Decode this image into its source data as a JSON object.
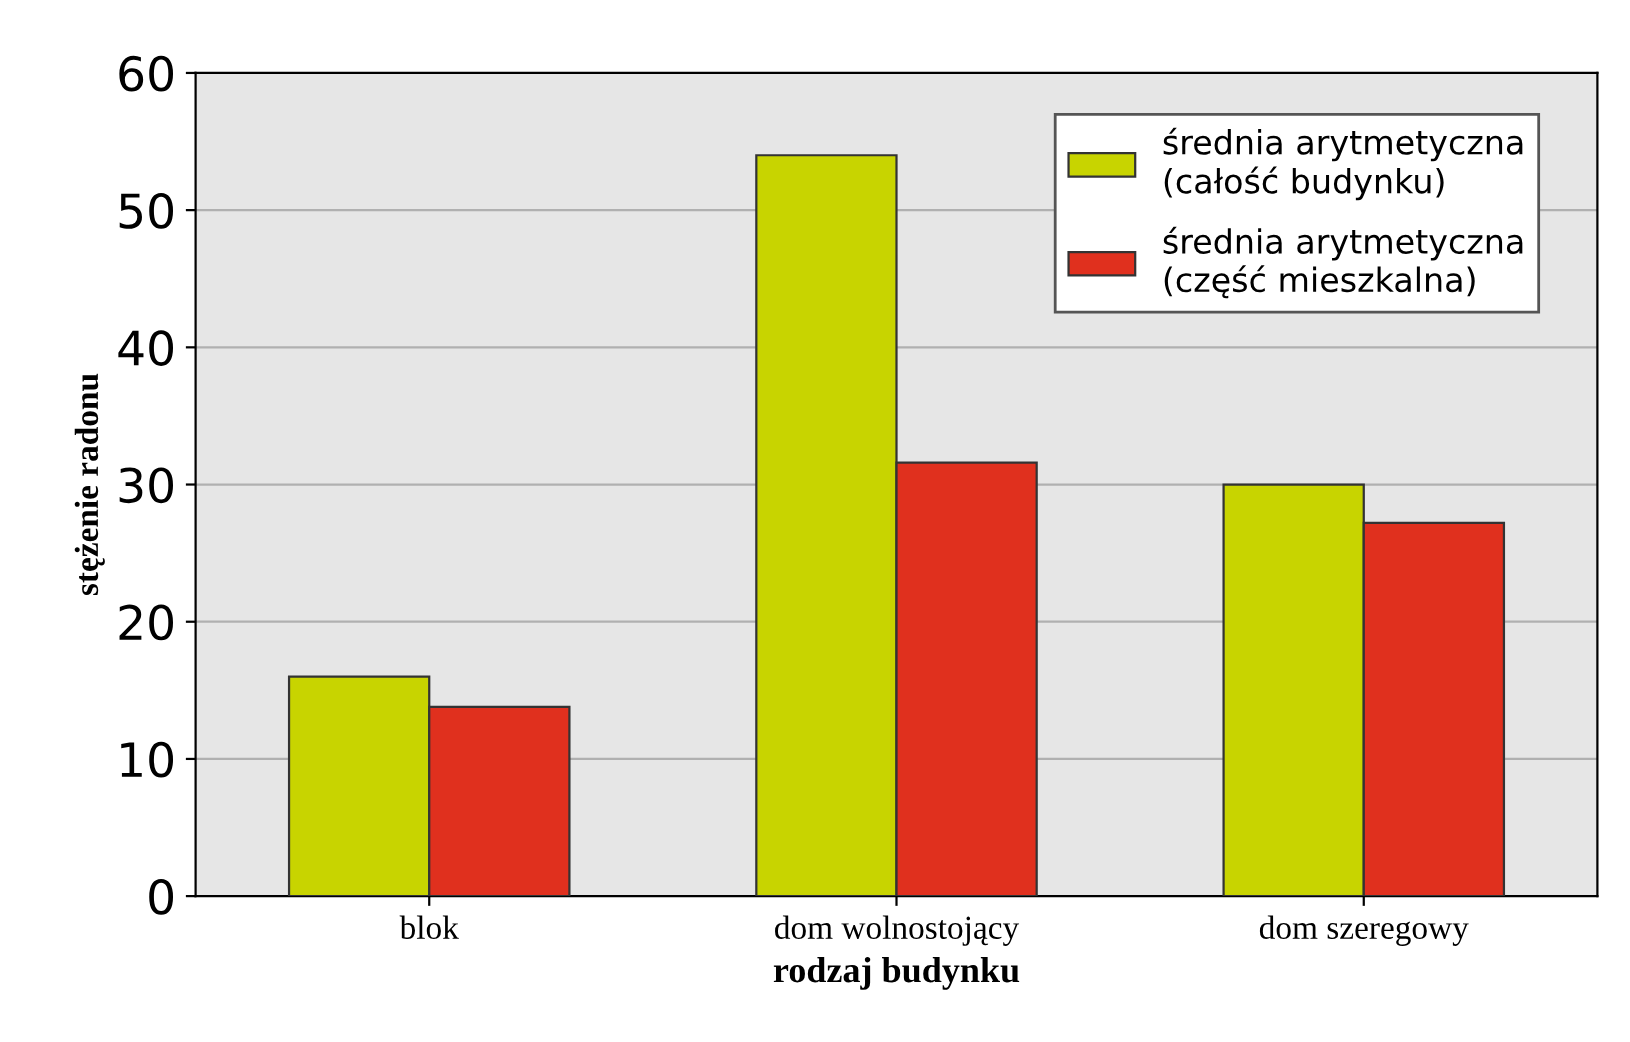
{
  "chart_data": {
    "type": "bar",
    "xlabel": "rodzaj budynku",
    "ylabel": "stężenie radonu",
    "categories": [
      "blok",
      "dom wolnostojący",
      "dom szeregowy"
    ],
    "series": [
      {
        "name": "średnia arytmetyczna\n(całość budynku)",
        "color": "#c8d400",
        "values": [
          16,
          54,
          30
        ]
      },
      {
        "name": "średnia arytmetyczna\n(część mieszkalna)",
        "color": "#e0301e",
        "values": [
          13.8,
          31.6,
          27.2
        ]
      }
    ],
    "ylim": [
      0,
      60
    ],
    "yticks": [
      0,
      10,
      20,
      30,
      40,
      50,
      60
    ],
    "grid": "y",
    "legend": "top right"
  }
}
